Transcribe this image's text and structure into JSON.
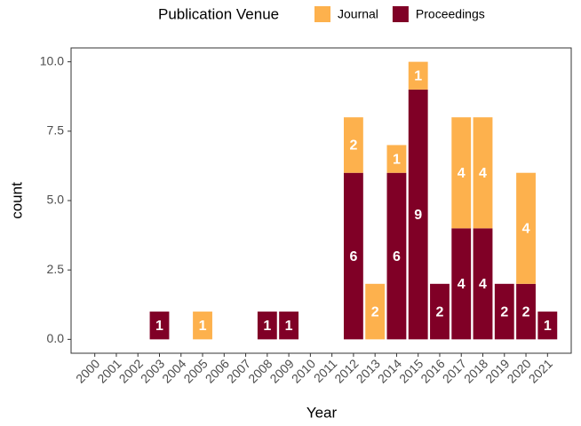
{
  "chart_data": {
    "type": "bar",
    "stacked": true,
    "x_label": "Year",
    "y_label": "count",
    "legend_title": "Publication Venue",
    "legend_position": "top",
    "categories": [
      "2000",
      "2001",
      "2002",
      "2003",
      "2004",
      "2005",
      "2006",
      "2007",
      "2008",
      "2009",
      "2010",
      "2011",
      "2012",
      "2013",
      "2014",
      "2015",
      "2016",
      "2017",
      "2018",
      "2019",
      "2020",
      "2021"
    ],
    "series": [
      {
        "name": "Journal",
        "color": "#fdb14d",
        "values": [
          null,
          null,
          null,
          null,
          null,
          1,
          null,
          null,
          null,
          null,
          null,
          null,
          2,
          2,
          1,
          1,
          null,
          4,
          4,
          null,
          4,
          null
        ]
      },
      {
        "name": "Proceedings",
        "color": "#800026",
        "values": [
          null,
          null,
          null,
          1,
          null,
          null,
          null,
          null,
          1,
          1,
          null,
          null,
          6,
          null,
          6,
          9,
          2,
          4,
          4,
          2,
          2,
          1
        ]
      }
    ],
    "ylim": [
      -0.5,
      10.5
    ],
    "yticks": [
      {
        "value": 0,
        "label": "0.0"
      },
      2.5,
      {
        "value": 5,
        "label": "5.0"
      },
      7.5,
      {
        "value": 10,
        "label": "10.0"
      }
    ],
    "grid": false
  }
}
